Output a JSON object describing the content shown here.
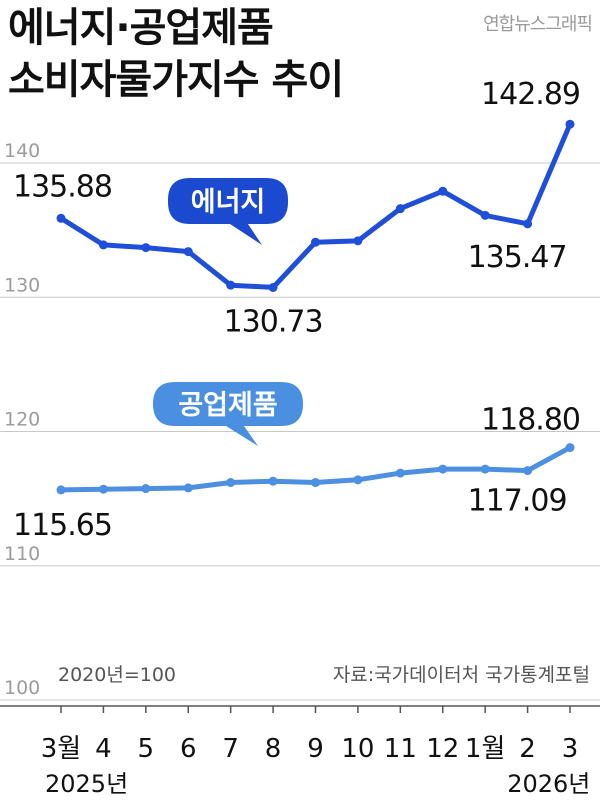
{
  "header": {
    "title_line1": "에너지·공업제품",
    "title_line2": "소비자물가지수 추이",
    "credit": "연합뉴스그래픽"
  },
  "notes": {
    "base": "2020년=100",
    "source": "자료:국가데이터처 국가통계포털"
  },
  "colors": {
    "energy": "#1f4fd8",
    "industrial": "#4d8fe0",
    "energy_bubble": "#1b4ad1",
    "industrial_bubble": "#4a8fe0",
    "grid": "#c8c8c8"
  },
  "chart_data": {
    "type": "line",
    "x": [
      "3월",
      "4",
      "5",
      "6",
      "7",
      "8",
      "9",
      "10",
      "11",
      "12",
      "1월",
      "2",
      "3"
    ],
    "year_labels": [
      {
        "index": 0,
        "label": "2025년"
      },
      {
        "index": 11.5,
        "label": "2026년"
      }
    ],
    "ylim": [
      100,
      143
    ],
    "yticks": [
      100,
      110,
      120,
      130,
      140
    ],
    "grid": true,
    "series": [
      {
        "name": "에너지",
        "values": [
          135.88,
          133.9,
          133.7,
          133.4,
          130.9,
          130.73,
          134.1,
          134.2,
          136.6,
          137.9,
          136.1,
          135.47,
          142.89
        ],
        "labels": [
          {
            "index": 0,
            "text": "135.88"
          },
          {
            "index": 5,
            "text": "130.73"
          },
          {
            "index": 11,
            "text": "135.47"
          },
          {
            "index": 12,
            "text": "142.89"
          }
        ]
      },
      {
        "name": "공업제품",
        "values": [
          115.65,
          115.7,
          115.75,
          115.8,
          116.2,
          116.3,
          116.2,
          116.4,
          116.9,
          117.2,
          117.2,
          117.09,
          118.8
        ],
        "labels": [
          {
            "index": 0,
            "text": "115.65"
          },
          {
            "index": 11,
            "text": "117.09"
          },
          {
            "index": 12,
            "text": "118.80"
          }
        ]
      }
    ]
  }
}
